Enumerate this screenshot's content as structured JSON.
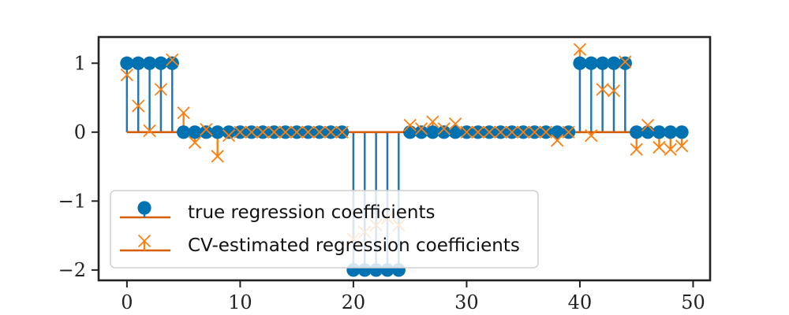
{
  "chart_data": {
    "type": "stem",
    "x": [
      0,
      1,
      2,
      3,
      4,
      5,
      6,
      7,
      8,
      9,
      10,
      11,
      12,
      13,
      14,
      15,
      16,
      17,
      18,
      19,
      20,
      21,
      22,
      23,
      24,
      25,
      26,
      27,
      28,
      29,
      30,
      31,
      32,
      33,
      34,
      35,
      36,
      37,
      38,
      39,
      40,
      41,
      42,
      43,
      44,
      45,
      46,
      47,
      48,
      49
    ],
    "series": [
      {
        "name": "true regression coefficients",
        "marker": "circle",
        "stem_color": "#1f77b4",
        "marker_color": "#0072b2",
        "values": [
          1,
          1,
          1,
          1,
          1,
          0,
          0,
          0,
          0,
          0,
          0,
          0,
          0,
          0,
          0,
          0,
          0,
          0,
          0,
          0,
          -2,
          -2,
          -2,
          -2,
          -2,
          0,
          0,
          0,
          0,
          0,
          0,
          0,
          0,
          0,
          0,
          0,
          0,
          0,
          0,
          0,
          1,
          1,
          1,
          1,
          1,
          0,
          0,
          0,
          0,
          0
        ]
      },
      {
        "name": "CV-estimated regression coefficients",
        "marker": "x",
        "stem_color": "#ff7f0e",
        "marker_color": "#ff7f0e",
        "values": [
          0.83,
          0.38,
          0.02,
          0.62,
          1.05,
          0.28,
          -0.15,
          0.04,
          -0.35,
          -0.05,
          0,
          0,
          0,
          0,
          0,
          0,
          0,
          0,
          0,
          0,
          -1.55,
          -1.45,
          -1.35,
          -1.25,
          -1.35,
          0.1,
          0.05,
          0.15,
          0.05,
          0.12,
          0,
          0,
          0,
          0,
          0,
          0,
          0,
          0,
          -0.12,
          0,
          1.2,
          -0.05,
          0.62,
          0.6,
          1.02,
          -0.25,
          0.1,
          -0.22,
          -0.25,
          -0.2
        ]
      }
    ],
    "baseline_color": "#d55e00",
    "xlim": [
      -2.5,
      51.5
    ],
    "ylim": [
      -2.15,
      1.38
    ],
    "x_ticks": [
      0,
      10,
      20,
      30,
      40,
      50
    ],
    "y_ticks": [
      1,
      0,
      -1,
      -2
    ],
    "x_tick_labels": [
      "0",
      "10",
      "20",
      "30",
      "40",
      "50"
    ],
    "y_tick_labels": [
      "1",
      "0",
      "−1",
      "−2"
    ],
    "legend": {
      "placement": "lower-left",
      "entries": [
        "true regression coefficients",
        "CV-estimated regression coefficients"
      ]
    },
    "grid": false
  }
}
